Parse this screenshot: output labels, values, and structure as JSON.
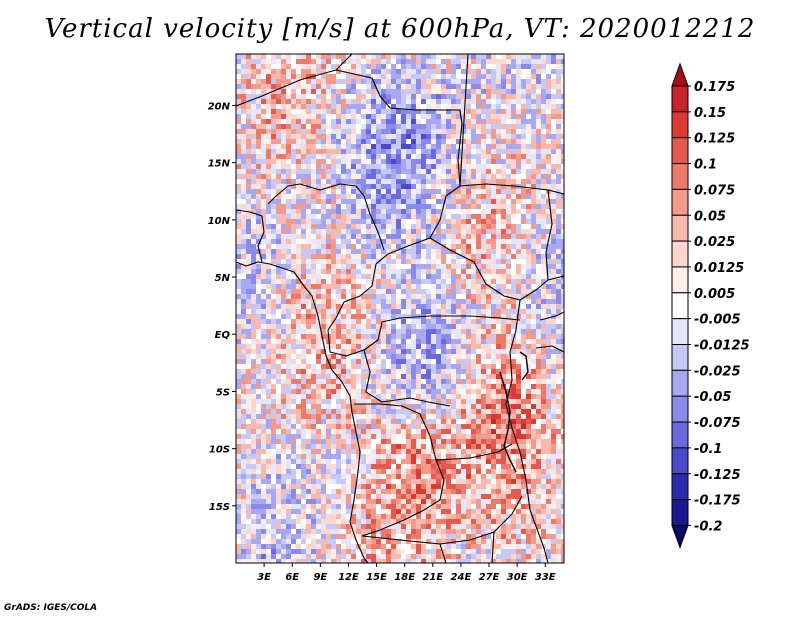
{
  "chart_data": {
    "type": "heatmap",
    "title": "Vertical velocity [m/s] at 600hPa, VT: 2020012212",
    "variable": "Vertical velocity",
    "units": "m/s",
    "level": "600hPa",
    "valid_time": "2020012212",
    "x_range": [
      0,
      35
    ],
    "y_range": [
      -20,
      24.5
    ],
    "x_ticks": [
      {
        "value": 3,
        "label": "3E"
      },
      {
        "value": 6,
        "label": "6E"
      },
      {
        "value": 9,
        "label": "9E"
      },
      {
        "value": 12,
        "label": "12E"
      },
      {
        "value": 15,
        "label": "15E"
      },
      {
        "value": 18,
        "label": "18E"
      },
      {
        "value": 21,
        "label": "21E"
      },
      {
        "value": 24,
        "label": "24E"
      },
      {
        "value": 27,
        "label": "27E"
      },
      {
        "value": 30,
        "label": "30E"
      },
      {
        "value": 33,
        "label": "33E"
      }
    ],
    "y_ticks": [
      {
        "value": 20,
        "label": "20N"
      },
      {
        "value": 15,
        "label": "15N"
      },
      {
        "value": 10,
        "label": "10N"
      },
      {
        "value": 5,
        "label": "5N"
      },
      {
        "value": 0,
        "label": "EQ"
      },
      {
        "value": -5,
        "label": "5S"
      },
      {
        "value": -10,
        "label": "10S"
      },
      {
        "value": -15,
        "label": "15S"
      }
    ],
    "colorbar": {
      "labels": [
        "0.175",
        "0.15",
        "0.125",
        "0.1",
        "0.075",
        "0.05",
        "0.025",
        "0.0125",
        "0.005",
        "-0.005",
        "-0.0125",
        "-0.025",
        "-0.05",
        "-0.075",
        "-0.1",
        "-0.125",
        "-0.175",
        "-0.2"
      ],
      "colors": [
        "#a50f15",
        "#c8262a",
        "#dc3b33",
        "#e45a4e",
        "#ec7a6b",
        "#f29a8b",
        "#f7b9ad",
        "#fbd7d0",
        "#fdeeea",
        "#ffffff",
        "#e6e6fa",
        "#c8c8f5",
        "#a8a8f0",
        "#8a8ae8",
        "#6a6add",
        "#4a4acb",
        "#2c2cb0",
        "#181890",
        "#0a0a6a"
      ]
    }
  },
  "credit": "GrADS: IGES/COLA"
}
